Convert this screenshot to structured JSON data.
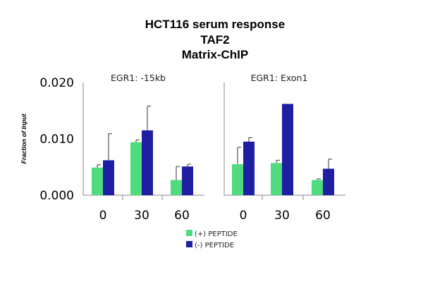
{
  "chart_data": {
    "type": "bar",
    "title": [
      "HCT116 serum response",
      "TAF2",
      "Matrix-ChIP"
    ],
    "ylabel": "Fraction of Input",
    "ylim": [
      0,
      0.02
    ],
    "yticks": [
      "0.020",
      "0.010",
      "0.000"
    ],
    "ytick_values": [
      0.02,
      0.01,
      0.0
    ],
    "categories": [
      "0",
      "30",
      "60"
    ],
    "colors": {
      "plus": "#4fdc7e",
      "minus": "#1f1fa3"
    },
    "legend": [
      "(+) PEPTIDE",
      "(-) PEPTIDE"
    ],
    "panels": [
      {
        "title": "EGR1: -15kb",
        "series": [
          {
            "name": "(+) PEPTIDE",
            "values": [
              0.0049,
              0.0094,
              0.0027
            ],
            "errors": [
              0.0005,
              0.0004,
              0.0024
            ]
          },
          {
            "name": "(-) PEPTIDE",
            "values": [
              0.0062,
              0.0115,
              0.0051
            ],
            "errors": [
              0.0047,
              0.0043,
              0.0004
            ]
          }
        ]
      },
      {
        "title": "EGR1: Exon1",
        "series": [
          {
            "name": "(+) PEPTIDE",
            "values": [
              0.0055,
              0.0057,
              0.0027
            ],
            "errors": [
              0.003,
              0.0005,
              0.0002
            ]
          },
          {
            "name": "(-) PEPTIDE",
            "values": [
              0.0095,
              0.0162,
              0.0047
            ],
            "errors": [
              0.0007,
              0.0,
              0.0017
            ]
          }
        ]
      }
    ]
  }
}
